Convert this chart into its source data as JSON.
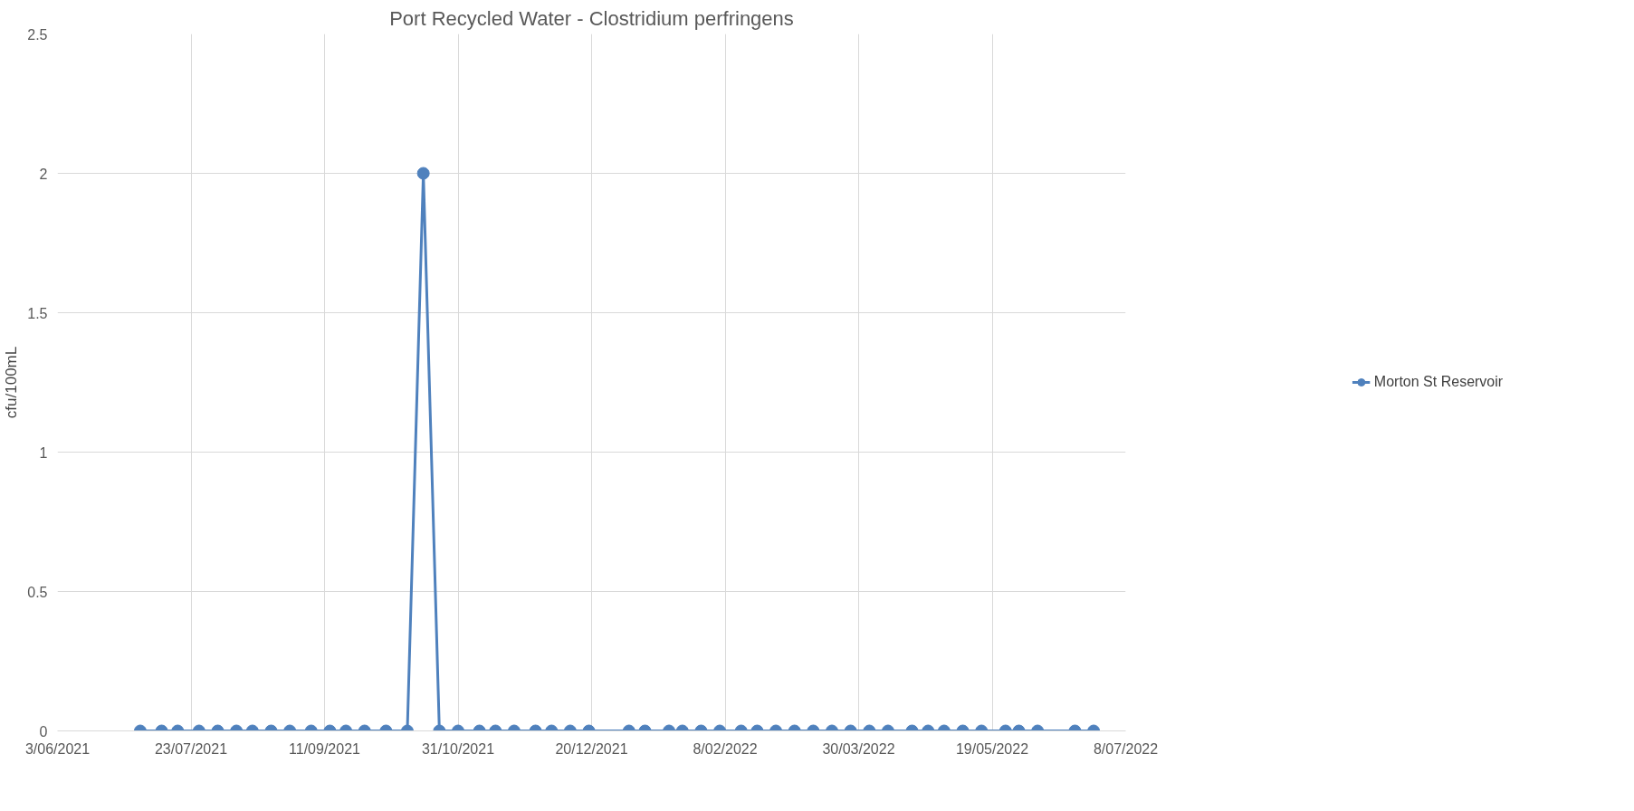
{
  "chart_data": {
    "type": "line",
    "title": "Port Recycled Water - Clostridium perfringens",
    "ylabel": "cfu/100mL",
    "x": [
      "2021-07-04",
      "2021-07-12",
      "2021-07-18",
      "2021-07-26",
      "2021-08-02",
      "2021-08-09",
      "2021-08-15",
      "2021-08-22",
      "2021-08-29",
      "2021-09-06",
      "2021-09-13",
      "2021-09-19",
      "2021-09-26",
      "2021-10-04",
      "2021-10-12",
      "2021-10-18",
      "2021-10-24",
      "2021-10-31",
      "2021-11-08",
      "2021-11-14",
      "2021-11-21",
      "2021-11-29",
      "2021-12-05",
      "2021-12-12",
      "2021-12-19",
      "2022-01-03",
      "2022-01-09",
      "2022-01-18",
      "2022-01-23",
      "2022-01-30",
      "2022-02-06",
      "2022-02-14",
      "2022-02-20",
      "2022-02-27",
      "2022-03-06",
      "2022-03-13",
      "2022-03-20",
      "2022-03-27",
      "2022-04-03",
      "2022-04-10",
      "2022-04-19",
      "2022-04-25",
      "2022-05-01",
      "2022-05-08",
      "2022-05-15",
      "2022-05-24",
      "2022-05-29",
      "2022-06-05",
      "2022-06-19",
      "2022-06-26"
    ],
    "series": [
      {
        "name": "Morton St Reservoir",
        "color": "#4f81bd",
        "values": [
          0,
          0,
          0,
          0,
          0,
          0,
          0,
          0,
          0,
          0,
          0,
          0,
          0,
          0,
          0,
          2,
          0,
          0,
          0,
          0,
          0,
          0,
          0,
          0,
          0,
          0,
          0,
          0,
          0,
          0,
          0,
          0,
          0,
          0,
          0,
          0,
          0,
          0,
          0,
          0,
          0,
          0,
          0,
          0,
          0,
          0,
          0,
          0,
          0,
          0
        ]
      }
    ],
    "xlim": [
      "2021-06-03",
      "2022-07-08"
    ],
    "xticks": [
      {
        "value": "2021-06-03",
        "label": "3/06/2021"
      },
      {
        "value": "2021-07-23",
        "label": "23/07/2021"
      },
      {
        "value": "2021-09-11",
        "label": "11/09/2021"
      },
      {
        "value": "2021-10-31",
        "label": "31/10/2021"
      },
      {
        "value": "2021-12-20",
        "label": "20/12/2021"
      },
      {
        "value": "2022-02-08",
        "label": "8/02/2022"
      },
      {
        "value": "2022-03-30",
        "label": "30/03/2022"
      },
      {
        "value": "2022-05-19",
        "label": "19/05/2022"
      },
      {
        "value": "2022-07-08",
        "label": "8/07/2022"
      }
    ],
    "ylim": [
      0,
      2.5
    ],
    "yticks": [
      0,
      0.5,
      1,
      1.5,
      2,
      2.5
    ],
    "grid": true,
    "legend": "right",
    "marker": "circle",
    "line_style": "solid"
  }
}
